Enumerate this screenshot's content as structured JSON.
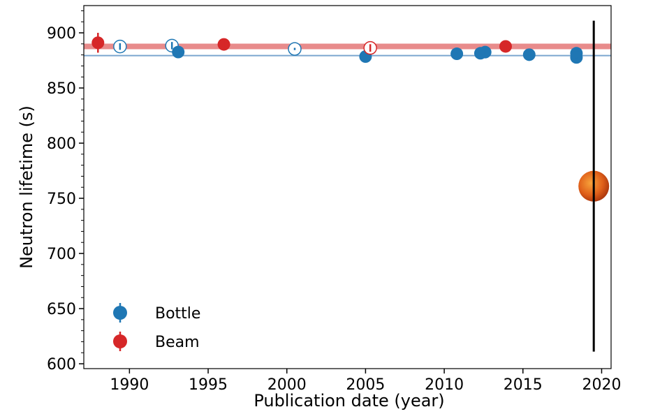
{
  "chart_data": {
    "type": "scatter",
    "xlabel": "Publication date (year)",
    "ylabel": "Neutron lifetime (s)",
    "xlim": [
      1987.1,
      2020.6
    ],
    "ylim": [
      595.6,
      924.7
    ],
    "xticks": [
      1990,
      1995,
      2000,
      2005,
      2010,
      2015,
      2020
    ],
    "yticks": [
      600,
      650,
      700,
      750,
      800,
      850,
      900
    ],
    "yminorticks": [
      600,
      610,
      620,
      630,
      640,
      650,
      660,
      670,
      680,
      690,
      700,
      710,
      720,
      730,
      740,
      750,
      760,
      770,
      780,
      790,
      800,
      810,
      820,
      830,
      840,
      850,
      860,
      870,
      880,
      890,
      900,
      910,
      920
    ],
    "legend": "lower left",
    "reference_lines": [
      {
        "value": 887.7,
        "color": "#e88b8b"
      },
      {
        "value": 879.4,
        "color": "#7aa6cf"
      }
    ],
    "series": [
      {
        "name": "Bottle",
        "color": "#1f77b4",
        "x": [
          1989.4,
          1992.7,
          1993.1,
          2000.5,
          2005.0,
          2010.8,
          2012.3,
          2012.6,
          2015.4,
          2018.4,
          2018.4
        ],
        "y": [
          887.6,
          888.4,
          882.6,
          885.4,
          878.5,
          881.0,
          881.5,
          882.5,
          880.2,
          881.5,
          877.7
        ],
        "errors": [
          3,
          3.3,
          2,
          1,
          0.7,
          0.7,
          1,
          1.4,
          0.8,
          0.7,
          0.7
        ],
        "filled": [
          false,
          false,
          true,
          false,
          true,
          true,
          true,
          true,
          true,
          true,
          true
        ]
      },
      {
        "name": "Beam",
        "color": "#d62728",
        "x": [
          1988.0,
          1996.0,
          2005.3,
          2013.9
        ],
        "y": [
          891,
          889.5,
          886.3,
          887.7
        ],
        "errors": [
          9,
          5,
          3.4,
          3.1
        ],
        "filled": [
          true,
          true,
          false,
          true
        ]
      },
      {
        "color": "#e8741c",
        "error_color": "#000000",
        "x": [
          2019.5
        ],
        "y": [
          761
        ],
        "errors": [
          150
        ],
        "filled": [
          true
        ]
      }
    ]
  }
}
